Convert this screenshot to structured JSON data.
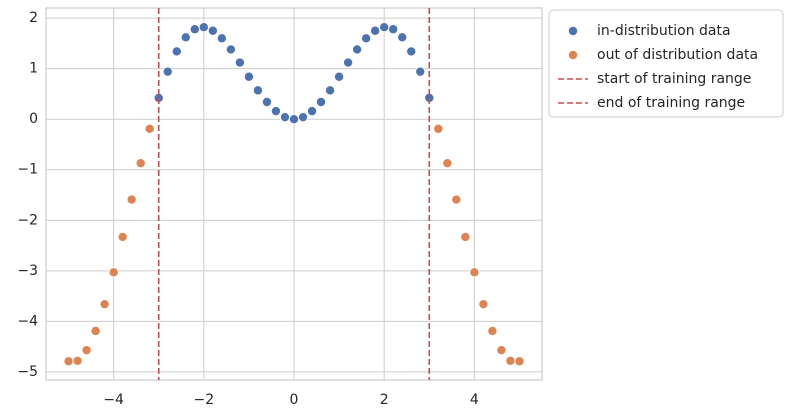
{
  "chart_data": {
    "type": "scatter",
    "series": [
      {
        "name": "in-distribution data",
        "color": "#4c72b0",
        "x": [
          -3.0,
          -2.8,
          -2.6,
          -2.4,
          -2.2,
          -2.0,
          -1.8,
          -1.6,
          -1.4,
          -1.2,
          -1.0,
          -0.8,
          -0.6,
          -0.4,
          -0.2,
          0.0,
          0.2,
          0.4,
          0.6,
          0.8,
          1.0,
          1.2,
          1.4,
          1.6,
          1.8,
          2.0,
          2.2,
          2.4,
          2.6,
          2.8,
          3.0
        ],
        "values": [
          0.42,
          0.94,
          1.34,
          1.62,
          1.78,
          1.82,
          1.75,
          1.6,
          1.38,
          1.12,
          0.84,
          0.57,
          0.34,
          0.16,
          0.04,
          0.0,
          0.04,
          0.16,
          0.34,
          0.57,
          0.84,
          1.12,
          1.38,
          1.6,
          1.75,
          1.82,
          1.78,
          1.62,
          1.34,
          0.94,
          0.42
        ]
      },
      {
        "name": "out of distribution data",
        "color": "#dd8452",
        "x": [
          -5.0,
          -4.8,
          -4.6,
          -4.4,
          -4.2,
          -4.0,
          -3.8,
          -3.6,
          -3.4,
          -3.2,
          3.2,
          3.4,
          3.6,
          3.8,
          4.0,
          4.2,
          4.4,
          4.6,
          4.8,
          5.0
        ],
        "values": [
          -4.79,
          -4.78,
          -4.57,
          -4.19,
          -3.66,
          -3.03,
          -2.33,
          -1.59,
          -0.87,
          -0.19,
          -0.19,
          -0.87,
          -1.59,
          -2.33,
          -3.03,
          -3.66,
          -4.19,
          -4.57,
          -4.78,
          -4.79
        ]
      }
    ],
    "vlines": [
      {
        "name": "start of training range",
        "x": -3,
        "color": "#c44e52"
      },
      {
        "name": "end of training range",
        "x": 3,
        "color": "#c44e52"
      }
    ],
    "xlim": [
      -5.5,
      5.5
    ],
    "ylim": [
      -5.16,
      2.2
    ],
    "xticks": [
      {
        "value": -4,
        "label": "−4"
      },
      {
        "value": -2,
        "label": "−2"
      },
      0,
      2,
      4
    ],
    "yticks": [
      {
        "value": -5,
        "label": "−5"
      },
      {
        "value": -4,
        "label": "−4"
      },
      {
        "value": -3,
        "label": "−3"
      },
      {
        "value": -2,
        "label": "−2"
      },
      {
        "value": -1,
        "label": "−1"
      },
      0,
      1,
      2
    ],
    "grid": true,
    "legend": "outside upper right"
  }
}
